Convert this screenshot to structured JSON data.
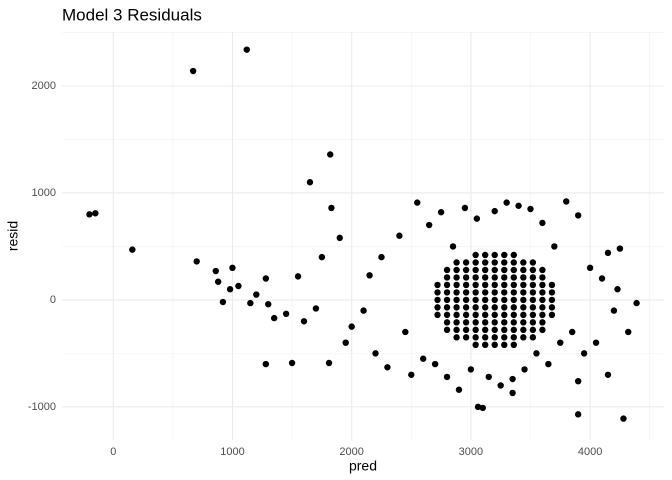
{
  "chart_data": {
    "type": "scatter",
    "title": "Model 3 Residuals",
    "x_label": "pred",
    "y_label": "resid",
    "xlim": [
      -430,
      4620
    ],
    "ylim": [
      -1310,
      2505
    ],
    "xticks": [
      0,
      1000,
      2000,
      3000,
      4000
    ],
    "yticks": [
      -1000,
      0,
      1000,
      2000
    ],
    "x_minor_breaks": [
      500,
      1500,
      2500,
      3500,
      4500
    ],
    "y_minor_breaks": [
      -500,
      500,
      1500,
      2500
    ],
    "grid": true,
    "color": "#000000",
    "series": [
      {
        "name": "resid",
        "x": [
          -200,
          -150,
          160,
          670,
          1120,
          700,
          1650,
          1820,
          1830,
          1810,
          1280,
          1500,
          3100,
          3060,
          3900,
          4280,
          3900,
          4390,
          4320,
          4250,
          4150,
          860,
          880,
          920,
          980,
          1000,
          1050,
          1150,
          1200,
          1280,
          1300,
          1350,
          1450,
          1550,
          1600,
          1700,
          1750,
          1900,
          1950,
          2000,
          2100,
          2150,
          2200,
          2250,
          2300,
          2400,
          2450,
          2500,
          2550,
          2600,
          2650,
          2700,
          2750,
          2800,
          2850,
          2900,
          2950,
          3000,
          3050,
          3150,
          3200,
          3250,
          3300,
          3350,
          3400,
          3450,
          3500,
          3550,
          3600,
          3650,
          3700,
          3750,
          3800,
          3850,
          3900,
          3950,
          4000,
          4050,
          4100,
          4150,
          4200,
          4230,
          3350,
          3040,
          3120,
          3200,
          3280,
          3360,
          2880,
          2960,
          3040,
          3120,
          3200,
          3280,
          3360,
          3440,
          3520,
          2800,
          2880,
          2960,
          3040,
          3120,
          3200,
          3280,
          3360,
          3440,
          3520,
          3600,
          2800,
          2880,
          2960,
          3040,
          3120,
          3200,
          3280,
          3360,
          3440,
          3520,
          3600,
          2720,
          2800,
          2880,
          2960,
          3040,
          3120,
          3200,
          3280,
          3360,
          3440,
          3520,
          3600,
          3680,
          2720,
          2800,
          2880,
          2960,
          3040,
          3120,
          3200,
          3280,
          3360,
          3440,
          3520,
          3600,
          3680,
          2720,
          2800,
          2880,
          2960,
          3040,
          3120,
          3200,
          3280,
          3360,
          3440,
          3520,
          3600,
          3680,
          2720,
          2800,
          2880,
          2960,
          3040,
          3120,
          3200,
          3280,
          3360,
          3440,
          3520,
          3600,
          3680,
          2720,
          2800,
          2880,
          2960,
          3040,
          3120,
          3200,
          3280,
          3360,
          3440,
          3520,
          3600,
          3680,
          2800,
          2880,
          2960,
          3040,
          3120,
          3200,
          3280,
          3360,
          3440,
          3520,
          3600,
          2800,
          2880,
          2960,
          3040,
          3120,
          3200,
          3280,
          3360,
          3440,
          3520,
          3600,
          2880,
          2960,
          3040,
          3120,
          3200,
          3280,
          3360,
          3440,
          3520,
          3040,
          3120,
          3200,
          3280,
          3360
        ],
        "values": [
          800,
          810,
          470,
          2140,
          2340,
          360,
          1100,
          1360,
          860,
          -590,
          -600,
          -590,
          -1010,
          -1000,
          -1070,
          -1110,
          -760,
          -30,
          -300,
          480,
          -700,
          270,
          170,
          -20,
          100,
          300,
          130,
          -30,
          50,
          200,
          -40,
          -170,
          -130,
          220,
          -200,
          -80,
          400,
          580,
          -400,
          -250,
          -100,
          230,
          -500,
          400,
          -630,
          600,
          -300,
          -700,
          910,
          -550,
          700,
          -600,
          820,
          -720,
          500,
          -840,
          860,
          -650,
          760,
          -720,
          830,
          -800,
          910,
          -870,
          880,
          -650,
          850,
          -500,
          720,
          -600,
          500,
          -400,
          920,
          -300,
          790,
          -500,
          300,
          -400,
          200,
          440,
          -100,
          100,
          -740,
          -420,
          -420,
          -420,
          -420,
          -420,
          -350,
          -350,
          -350,
          -350,
          -350,
          -350,
          -350,
          -350,
          -350,
          -280,
          -280,
          -280,
          -280,
          -280,
          -280,
          -280,
          -280,
          -280,
          -280,
          -280,
          -210,
          -210,
          -210,
          -210,
          -210,
          -210,
          -210,
          -210,
          -210,
          -210,
          -210,
          -140,
          -140,
          -140,
          -140,
          -140,
          -140,
          -140,
          -140,
          -140,
          -140,
          -140,
          -140,
          -140,
          -70,
          -70,
          -70,
          -70,
          -70,
          -70,
          -70,
          -70,
          -70,
          -70,
          -70,
          -70,
          -70,
          0,
          0,
          0,
          0,
          0,
          0,
          0,
          0,
          0,
          0,
          0,
          0,
          0,
          70,
          70,
          70,
          70,
          70,
          70,
          70,
          70,
          70,
          70,
          70,
          70,
          70,
          140,
          140,
          140,
          140,
          140,
          140,
          140,
          140,
          140,
          140,
          140,
          140,
          140,
          210,
          210,
          210,
          210,
          210,
          210,
          210,
          210,
          210,
          210,
          210,
          280,
          280,
          280,
          280,
          280,
          280,
          280,
          280,
          280,
          280,
          280,
          350,
          350,
          350,
          350,
          350,
          350,
          350,
          350,
          350,
          420,
          420,
          420,
          420,
          420
        ]
      }
    ]
  }
}
